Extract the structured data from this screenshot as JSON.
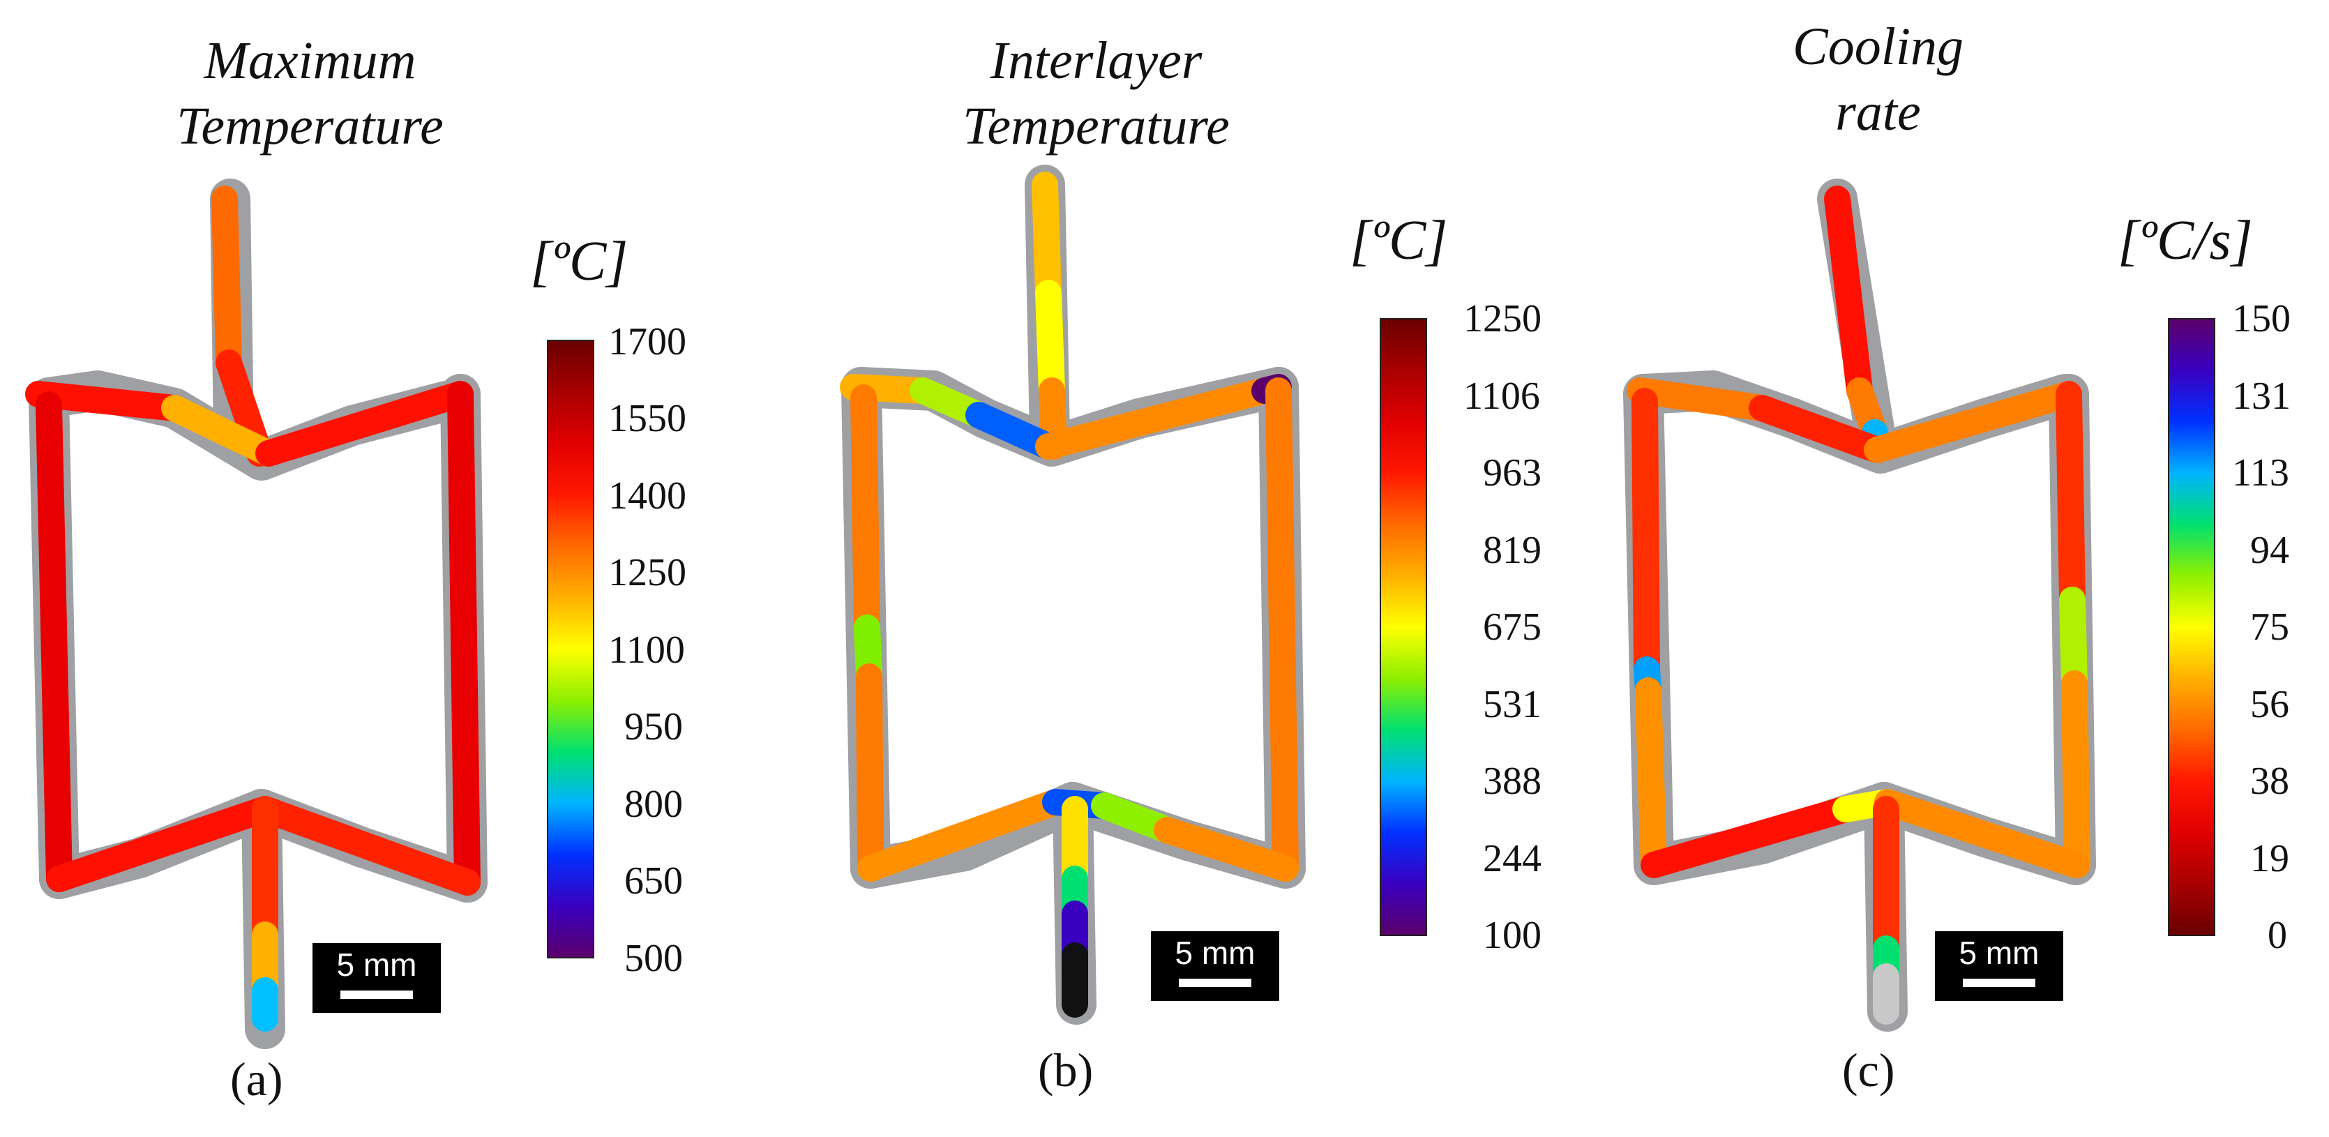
{
  "panels": [
    {
      "id": "a",
      "title_lines": [
        "Maximum",
        "Temperature"
      ],
      "unit": "[ºC]",
      "ticks": [
        "1700",
        "1550",
        "1400",
        "1250",
        "1100",
        "950",
        "800",
        "650",
        "500"
      ],
      "colormap": [
        "#5b006a",
        "#3a00c0",
        "#0030ff",
        "#00b4ff",
        "#00e070",
        "#8ef000",
        "#ffff00",
        "#ffb000",
        "#ff6a00",
        "#ff1800",
        "#e00000",
        "#a80000",
        "#6a0000"
      ],
      "scalebar_label": "5 mm",
      "caption": "(a)"
    },
    {
      "id": "b",
      "title_lines": [
        "Interlayer",
        "Temperature"
      ],
      "unit": "[ºC]",
      "ticks": [
        "1250",
        "1106",
        "963",
        "819",
        "675",
        "531",
        "388",
        "244",
        "100"
      ],
      "colormap": [
        "#5b006a",
        "#3a00c0",
        "#0030ff",
        "#00b4ff",
        "#00e070",
        "#8ef000",
        "#ffff00",
        "#ffb000",
        "#ff6a00",
        "#ff1800",
        "#e00000",
        "#a80000",
        "#6a0000"
      ],
      "scalebar_label": "5 mm",
      "caption": "(b)"
    },
    {
      "id": "c",
      "title_lines": [
        "Cooling",
        "rate"
      ],
      "unit": "[ºC/s]",
      "ticks": [
        "150",
        "131",
        "113",
        "94",
        "75",
        "56",
        "38",
        "19",
        "0"
      ],
      "colormap": [
        "#6a0000",
        "#a80000",
        "#e00000",
        "#ff1800",
        "#ff6a00",
        "#ffb000",
        "#ffff00",
        "#8ef000",
        "#00e070",
        "#00b4ff",
        "#0030ff",
        "#3a00c0",
        "#5b006a"
      ],
      "scalebar_label": "5 mm",
      "caption": "(c)"
    }
  ]
}
